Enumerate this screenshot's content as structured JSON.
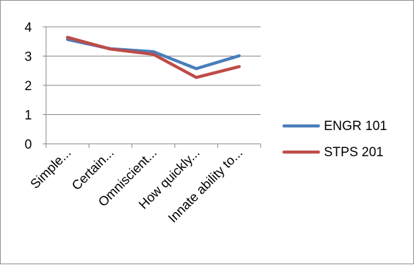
{
  "chart_data": {
    "type": "line",
    "title": "",
    "xlabel": "",
    "ylabel": "",
    "categories": [
      "Simple...",
      "Certain...",
      "Omniscient...",
      "How quickly...",
      "Innate ability to..."
    ],
    "ylim": [
      0,
      4
    ],
    "yticks": [
      "0",
      "1",
      "2",
      "3",
      "4"
    ],
    "grid": true,
    "legend_position": "right",
    "series": [
      {
        "name": "ENGR 101",
        "color": "#4a7ebb",
        "values": [
          3.57,
          3.25,
          3.15,
          2.57,
          3.01
        ]
      },
      {
        "name": "STPS 201",
        "color": "#be4b48",
        "values": [
          3.64,
          3.24,
          3.06,
          2.27,
          2.64
        ]
      }
    ]
  }
}
